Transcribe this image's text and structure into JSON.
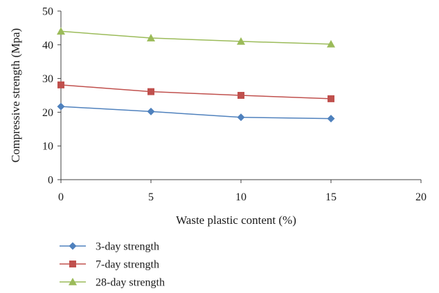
{
  "chart_data": {
    "type": "line",
    "title": "",
    "xlabel": "Waste plastic content (%)",
    "ylabel": "Compressive strength (Mpa)",
    "xlim": [
      0,
      20
    ],
    "ylim": [
      0,
      50
    ],
    "xticks": [
      "0",
      "5",
      "10",
      "15",
      "20"
    ],
    "yticks": [
      "0",
      "10",
      "20",
      "30",
      "40",
      "50"
    ],
    "grid": false,
    "legend_position": "bottom-left",
    "x": [
      0,
      5,
      10,
      15
    ],
    "series": [
      {
        "name": "3-day strength",
        "values": [
          21.7,
          20.2,
          18.5,
          18.1
        ],
        "color": "#4f81bd",
        "marker": "diamond"
      },
      {
        "name": "7-day strength",
        "values": [
          28.1,
          26.1,
          25.0,
          24.0
        ],
        "color": "#c0504d",
        "marker": "square"
      },
      {
        "name": "28-day strength",
        "values": [
          44.0,
          42.0,
          41.0,
          40.2
        ],
        "color": "#9bbb59",
        "marker": "triangle"
      }
    ]
  }
}
